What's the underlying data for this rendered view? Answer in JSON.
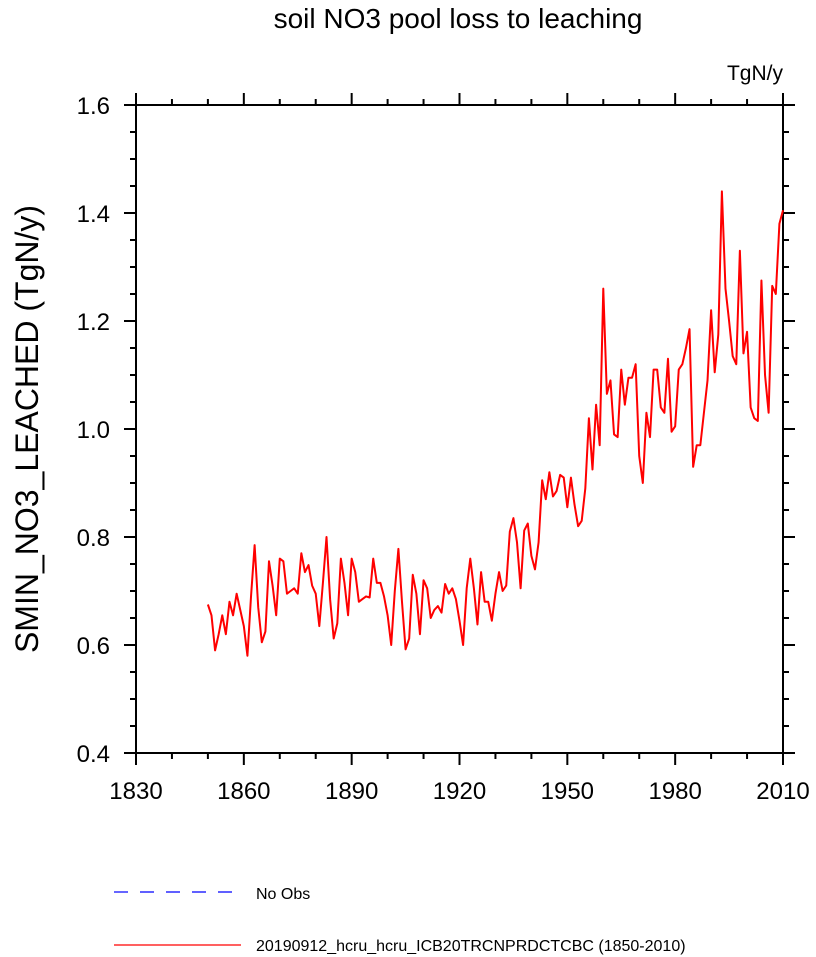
{
  "chart_data": {
    "type": "line",
    "title": "soil NO3 pool loss to leaching",
    "units_label": "TgN/y",
    "ylabel": "SMIN_NO3_LEACHED  (TgN/y)",
    "xlabel": "",
    "xlim": [
      1830,
      2010
    ],
    "ylim": [
      0.4,
      1.6
    ],
    "x_ticks": [
      1830,
      1860,
      1890,
      1920,
      1950,
      1980,
      2010
    ],
    "x_tick_labels": [
      "1830",
      "1860",
      "1890",
      "1920",
      "1950",
      "1980",
      "2010"
    ],
    "y_ticks": [
      0.4,
      0.6,
      0.8,
      1.0,
      1.2,
      1.4,
      1.6
    ],
    "y_tick_labels": [
      "0.4",
      "0.6",
      "0.8",
      "1.0",
      "1.2",
      "1.4",
      "1.6"
    ],
    "grid": false,
    "legend_position": "bottom-left",
    "legend": [
      {
        "label": "No Obs",
        "color": "#0000ff",
        "style": "dashed"
      },
      {
        "label": "20190912_hcru_hcru_ICB20TRCNPRDCTCBC (1850-2010)",
        "color": "#ff0000",
        "style": "solid"
      }
    ],
    "series": [
      {
        "name": "20190912_hcru_hcru_ICB20TRCNPRDCTCBC (1850-2010)",
        "color": "#ff0000",
        "x_start": 1850,
        "x_step": 1,
        "values": [
          0.675,
          0.655,
          0.59,
          0.62,
          0.655,
          0.62,
          0.68,
          0.655,
          0.695,
          0.665,
          0.635,
          0.58,
          0.69,
          0.785,
          0.67,
          0.605,
          0.625,
          0.755,
          0.71,
          0.655,
          0.76,
          0.755,
          0.695,
          0.7,
          0.705,
          0.695,
          0.77,
          0.735,
          0.748,
          0.71,
          0.695,
          0.635,
          0.715,
          0.8,
          0.685,
          0.612,
          0.64,
          0.76,
          0.715,
          0.655,
          0.76,
          0.735,
          0.68,
          0.685,
          0.69,
          0.688,
          0.76,
          0.715,
          0.715,
          0.69,
          0.655,
          0.6,
          0.7,
          0.778,
          0.68,
          0.592,
          0.612,
          0.73,
          0.695,
          0.62,
          0.72,
          0.705,
          0.65,
          0.665,
          0.672,
          0.66,
          0.713,
          0.695,
          0.705,
          0.685,
          0.645,
          0.6,
          0.705,
          0.76,
          0.705,
          0.638,
          0.735,
          0.68,
          0.68,
          0.645,
          0.695,
          0.735,
          0.7,
          0.71,
          0.81,
          0.835,
          0.79,
          0.705,
          0.812,
          0.825,
          0.765,
          0.74,
          0.79,
          0.905,
          0.87,
          0.92,
          0.875,
          0.885,
          0.915,
          0.91,
          0.855,
          0.91,
          0.86,
          0.82,
          0.83,
          0.89,
          1.02,
          0.925,
          1.045,
          0.97,
          1.26,
          1.065,
          1.09,
          0.99,
          0.985,
          1.11,
          1.045,
          1.095,
          1.095,
          1.12,
          0.95,
          0.9,
          1.03,
          0.985,
          1.11,
          1.11,
          1.04,
          1.03,
          1.13,
          0.995,
          1.005,
          1.11,
          1.12,
          1.15,
          1.185,
          0.93,
          0.97,
          0.97,
          1.03,
          1.09,
          1.22,
          1.105,
          1.175,
          1.44,
          1.26,
          1.2,
          1.135,
          1.12,
          1.33,
          1.14,
          1.18,
          1.04,
          1.02,
          1.015,
          1.275,
          1.1,
          1.03,
          1.265,
          1.25,
          1.38,
          1.405
        ]
      }
    ]
  }
}
